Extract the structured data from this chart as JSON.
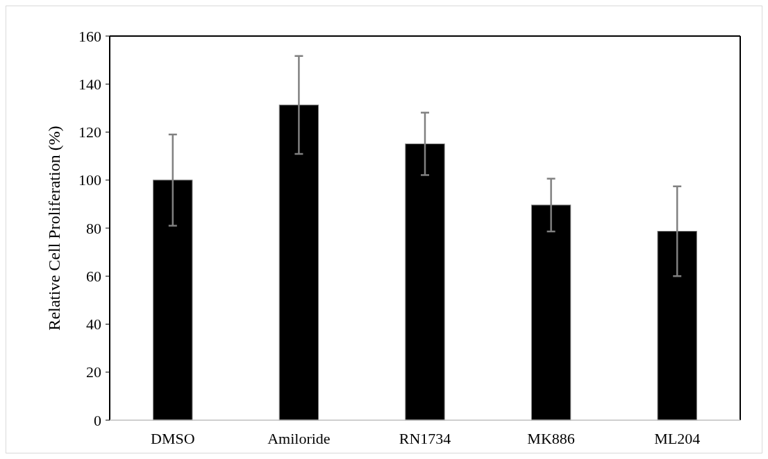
{
  "chart_data": {
    "type": "bar",
    "ylabel": "Relative Cell Proliferation (%)",
    "categories": [
      "DMSO",
      "Amiloride",
      "RN1734",
      "MK886",
      "ML204"
    ],
    "values": [
      100,
      131.3,
      115.1,
      89.6,
      78.7
    ],
    "errors": [
      19,
      20.4,
      13,
      11,
      18.7
    ],
    "color": "#000000",
    "ylim": [
      0,
      160
    ],
    "yticks": [
      0,
      20,
      40,
      60,
      80,
      100,
      120,
      140,
      160
    ],
    "grid": false
  }
}
